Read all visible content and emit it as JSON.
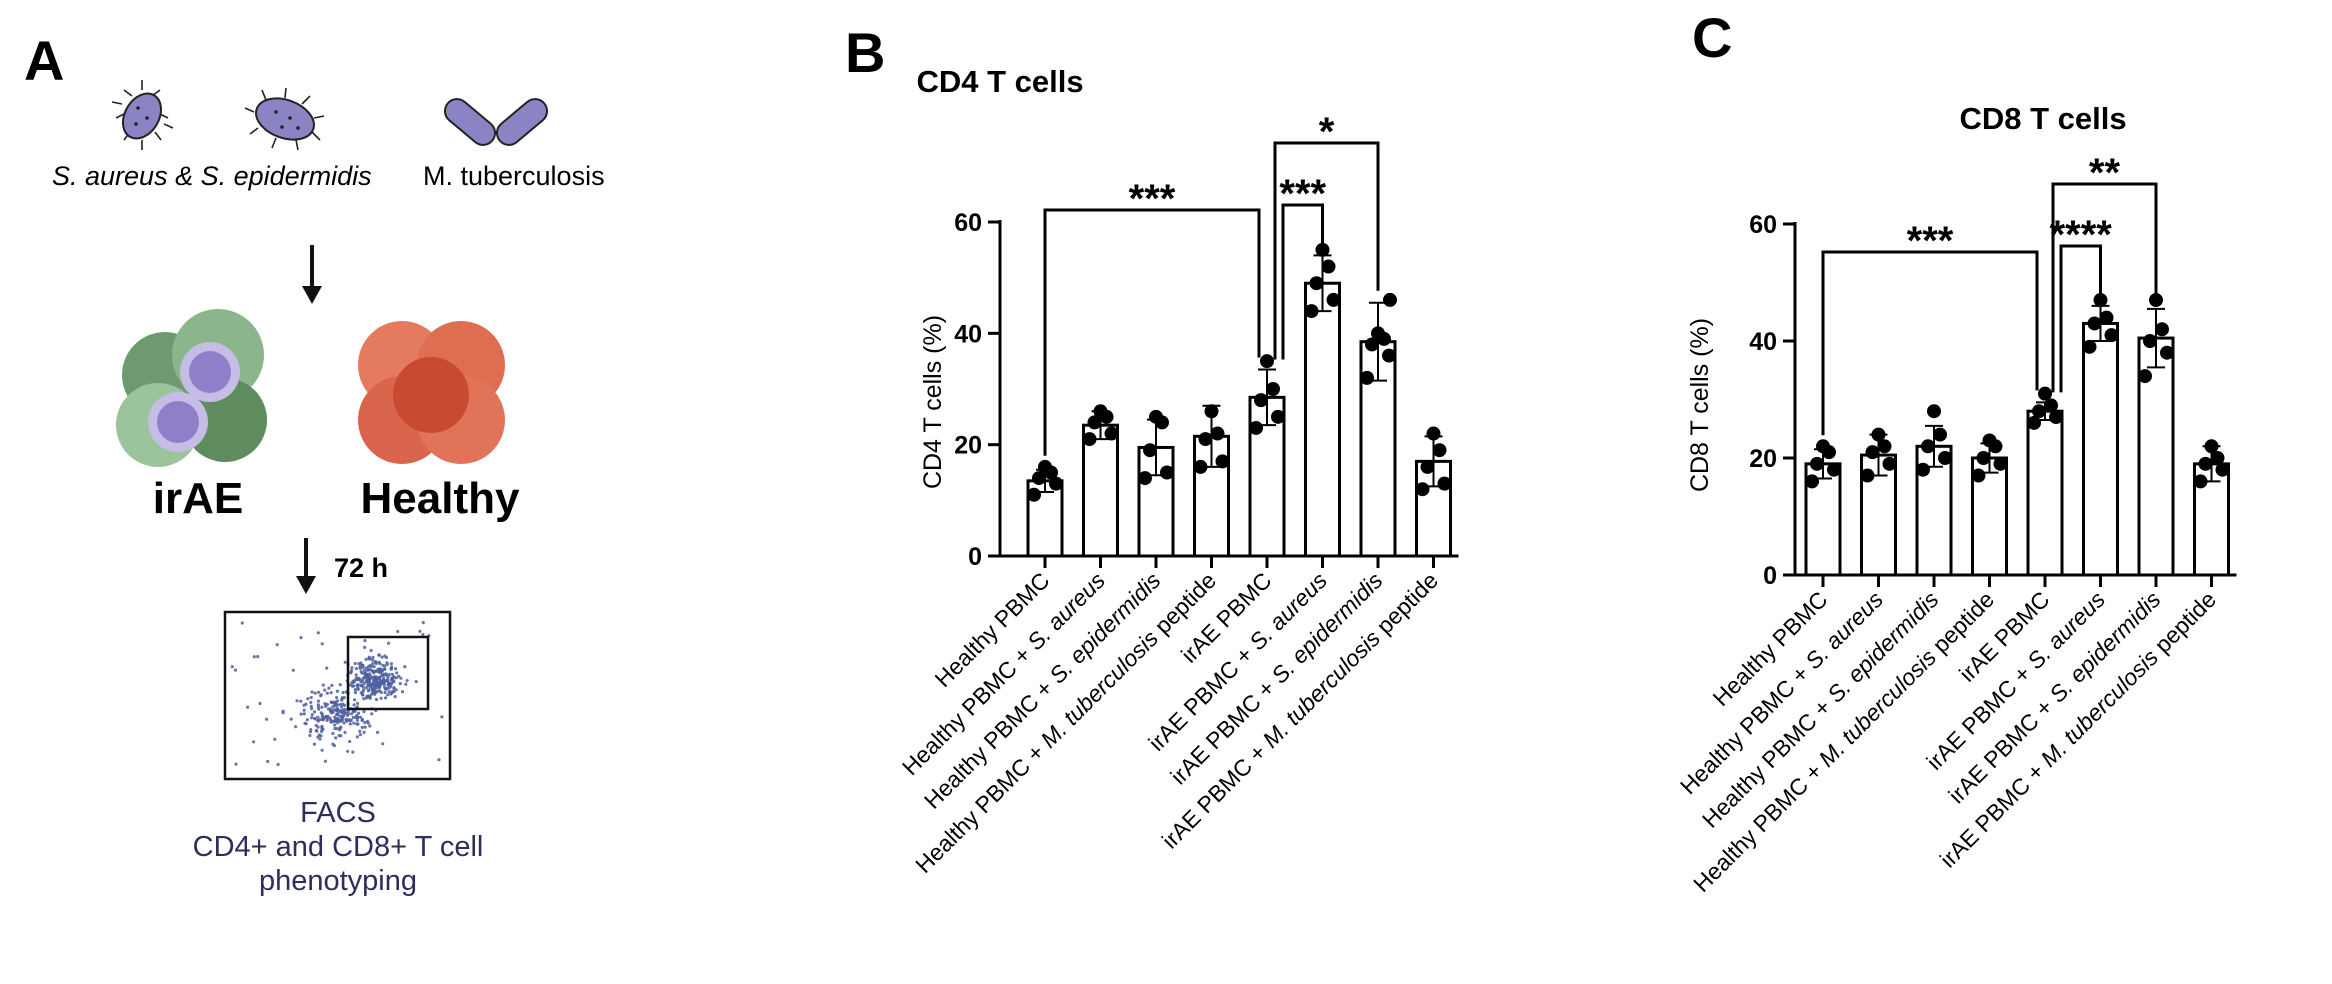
{
  "panel_a": {
    "letter": "A",
    "bacteria_label_staph": "S. aureus & S. epidermidis",
    "bacteria_label_mtb": "M. tuberculosis",
    "group_irae": "irAE",
    "group_healthy": "Healthy",
    "incubation_time": "72 h",
    "facs_line1": "FACS",
    "facs_line2": "CD4+ and CD8+ T cell",
    "facs_line3": "phenotyping",
    "colors": {
      "bacteria": "#8b84c4",
      "irae_cell": "#7aa07a",
      "irae_nucleus": "#8f7fc8",
      "healthy_cell": "#d9664c",
      "facs_dots": "#4d5f9e"
    }
  },
  "chart_data": [
    {
      "type": "bar",
      "panel": "B",
      "title": "CD4  T cells",
      "ylabel": "CD4 T cells (%)",
      "ylim": [
        0,
        60
      ],
      "yticks": [
        0,
        20,
        40,
        60
      ],
      "categories": [
        "Healthy PBMC",
        "Healthy PBMC + S. aureus",
        "Healthy PBMC + S. epidermidis",
        "Healthy PBMC + M. tuberculosis peptide",
        "irAE PBMC",
        "irAE PBMC + S. aureus",
        "irAE PBMC + S. epidermidis",
        "irAE PBMC + M. tuberculosis peptide"
      ],
      "values": [
        13.5,
        23.5,
        19.5,
        21.5,
        28.5,
        49,
        38.5,
        17
      ],
      "sd": [
        2,
        2.5,
        5,
        5.5,
        5,
        5,
        7,
        4.5
      ],
      "points": [
        [
          11,
          13,
          14,
          15,
          16
        ],
        [
          21,
          22,
          24,
          25,
          26
        ],
        [
          14,
          15,
          19,
          24,
          25
        ],
        [
          16,
          17,
          21,
          22,
          26
        ],
        [
          23,
          25,
          28,
          30,
          35
        ],
        [
          44,
          46,
          49,
          52,
          55
        ],
        [
          32,
          36,
          38,
          39,
          40,
          46
        ],
        [
          12,
          13,
          16,
          19,
          22
        ]
      ],
      "comparisons": [
        {
          "from": 0,
          "to": 4,
          "label": "***"
        },
        {
          "from": 4,
          "to": 5,
          "label": "***"
        },
        {
          "from": 4,
          "to": 6,
          "label": "*"
        }
      ]
    },
    {
      "type": "bar",
      "panel": "C",
      "title": "CD8 T cells",
      "ylabel": "CD8 T cells (%)",
      "ylim": [
        0,
        60
      ],
      "yticks": [
        0,
        20,
        40,
        60
      ],
      "categories": [
        "Healthy PBMC",
        "Healthy PBMC + S. aureus",
        "Healthy PBMC + S. epidermidis",
        "Healthy PBMC + M. tuberculosis peptide",
        "irAE PBMC",
        "irAE PBMC + S. aureus",
        "irAE PBMC + S. epidermidis",
        "irAE PBMC + M. tuberculosis peptide"
      ],
      "values": [
        19,
        20.5,
        22,
        20,
        28,
        43,
        40.5,
        19
      ],
      "sd": [
        2.5,
        3.5,
        3.5,
        2.5,
        1.5,
        3,
        5,
        3
      ],
      "points": [
        [
          16,
          18,
          19,
          21,
          22
        ],
        [
          17,
          19,
          21,
          22,
          24
        ],
        [
          18,
          20,
          22,
          24,
          28
        ],
        [
          17,
          19,
          20,
          22,
          23
        ],
        [
          26,
          27,
          28,
          29,
          31
        ],
        [
          39,
          41,
          43,
          44,
          47
        ],
        [
          34,
          38,
          40,
          42,
          47
        ],
        [
          16,
          18,
          19,
          20,
          22
        ]
      ],
      "comparisons": [
        {
          "from": 0,
          "to": 4,
          "label": "***"
        },
        {
          "from": 4,
          "to": 5,
          "label": "****"
        },
        {
          "from": 4,
          "to": 6,
          "label": "**"
        }
      ]
    }
  ]
}
